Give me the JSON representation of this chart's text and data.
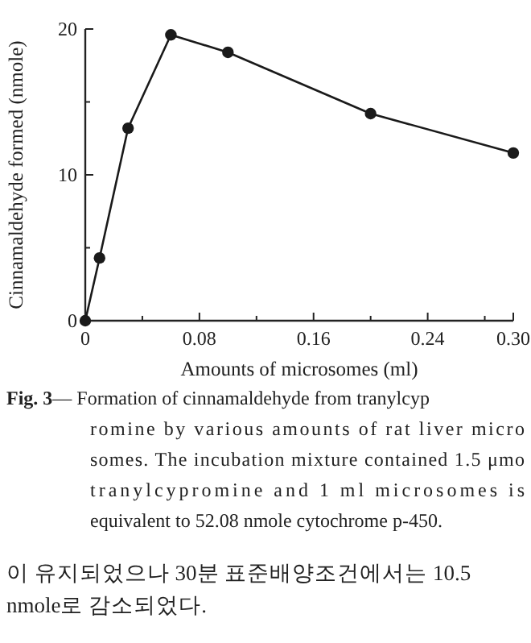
{
  "chart_data": {
    "type": "line",
    "xlabel": "Amounts of microsomes (ml)",
    "ylabel": "Cinnamaldehyde formed (nmole)",
    "x": [
      0,
      0.01,
      0.03,
      0.06,
      0.1,
      0.2,
      0.3
    ],
    "values": [
      0.0,
      4.3,
      13.2,
      19.6,
      18.4,
      14.2,
      11.5
    ],
    "color": "#1a1a1a",
    "marker": "circle",
    "line_style": "solid",
    "grid": false,
    "xlim": [
      0,
      0.3
    ],
    "ylim": [
      0,
      20
    ],
    "xticks": [
      0,
      {
        "value": 0.04,
        "label": null
      },
      0.08,
      {
        "value": 0.12,
        "label": null
      },
      0.16,
      {
        "value": 0.2,
        "label": null
      },
      0.24,
      {
        "value": 0.28,
        "label": null
      },
      {
        "value": 0.3,
        "label": "0.30"
      }
    ],
    "yticks": [
      0,
      {
        "value": 5,
        "label": null
      },
      10,
      {
        "value": 15,
        "label": null
      },
      20
    ],
    "annotations": [
      "**Fig. 3**— Formation of cinnamaldehyde from tranylcyp",
      "romine by various amounts of rat liver micro",
      "somes. The incubation mixture contained 1.5 μmo",
      "tranylcypromine and 1 ml microsomes is",
      "equivalent to 52.08 nmole cytochrome p-450.",
      "이 유지되었으나 30분 표준배양조건에서는 10.5",
      "nmole로 감소되었다."
    ]
  }
}
